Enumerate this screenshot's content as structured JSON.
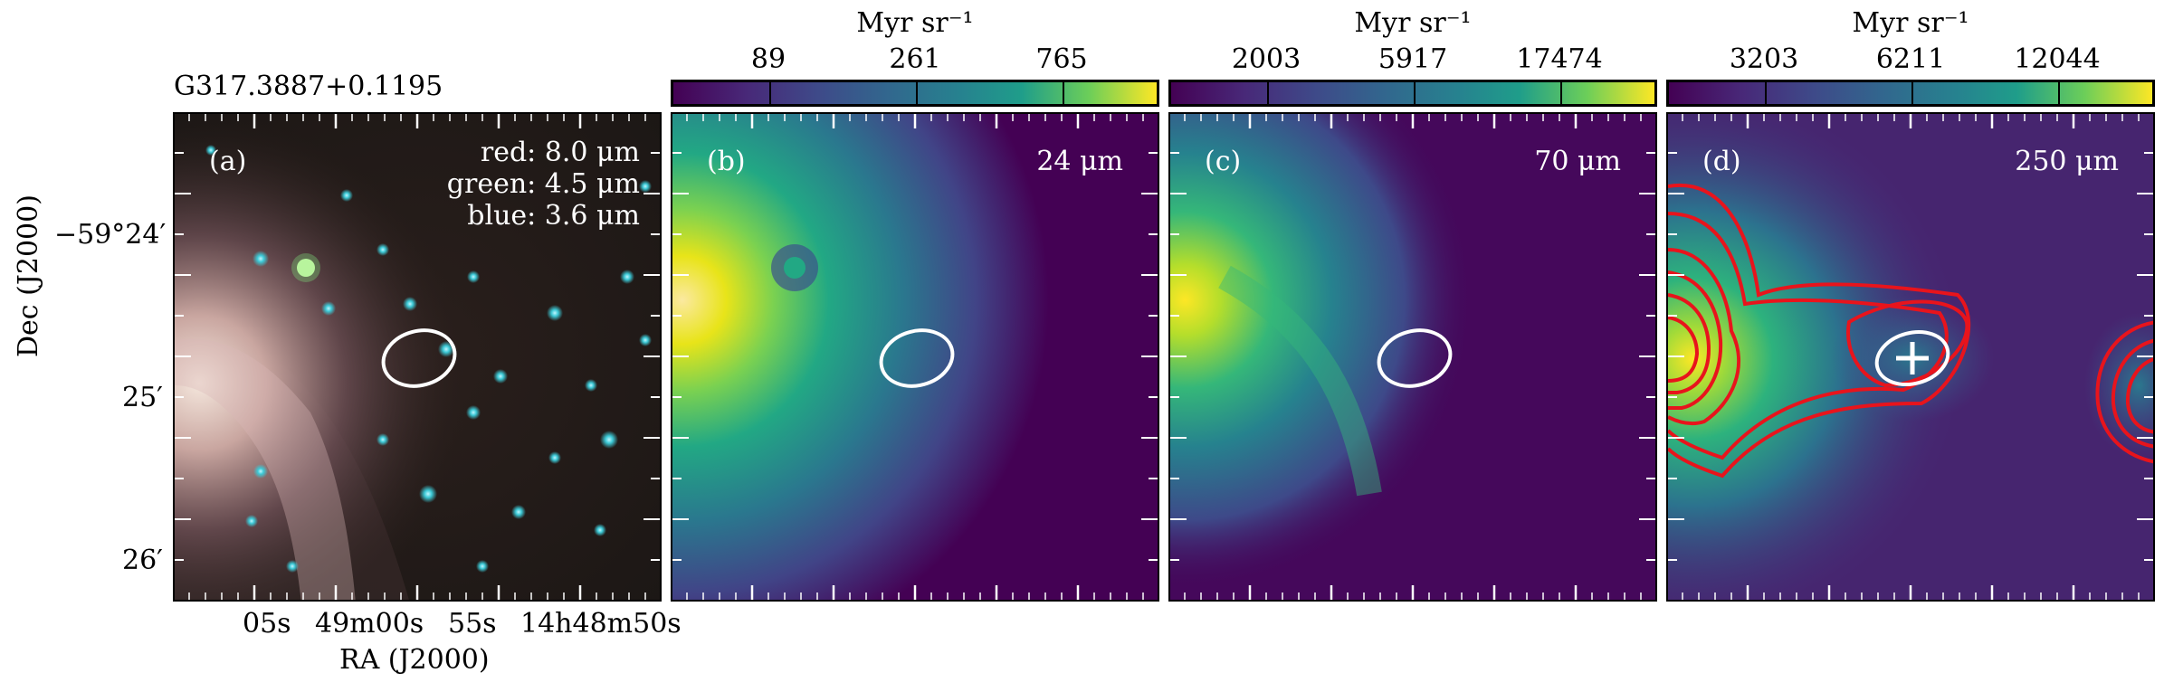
{
  "source_name": "G317.3887+0.1195",
  "panels": [
    {
      "id": "a",
      "letter": "(a)",
      "bands": [
        "red: 8.0 μm",
        "green: 4.5 μm",
        "blue: 3.6 μm"
      ]
    },
    {
      "id": "b",
      "letter": "(b)",
      "band": "24 μm",
      "colorbar": {
        "unit": "Myr sr⁻¹",
        "ticks": [
          "89",
          "261",
          "765"
        ]
      }
    },
    {
      "id": "c",
      "letter": "(c)",
      "band": "70 μm",
      "colorbar": {
        "unit": "Myr sr⁻¹",
        "ticks": [
          "2003",
          "5917",
          "17474"
        ]
      }
    },
    {
      "id": "d",
      "letter": "(d)",
      "band": "250 μm",
      "colorbar": {
        "unit": "Myr sr⁻¹",
        "ticks": [
          "3203",
          "6211",
          "12044"
        ]
      }
    }
  ],
  "axes": {
    "ylabel": "Dec (J2000)",
    "xlabel": "RA (J2000)",
    "yticks": [
      "−59°24′",
      "25′",
      "26′"
    ],
    "xticks": [
      "05s",
      "49m00s",
      "55s",
      "14h48m50s"
    ]
  },
  "colors": {
    "viridis_low": "#440154",
    "viridis_mid": "#21918c",
    "viridis_high": "#fde725",
    "contour": "#e8141c",
    "aperture": "#ffffff"
  }
}
